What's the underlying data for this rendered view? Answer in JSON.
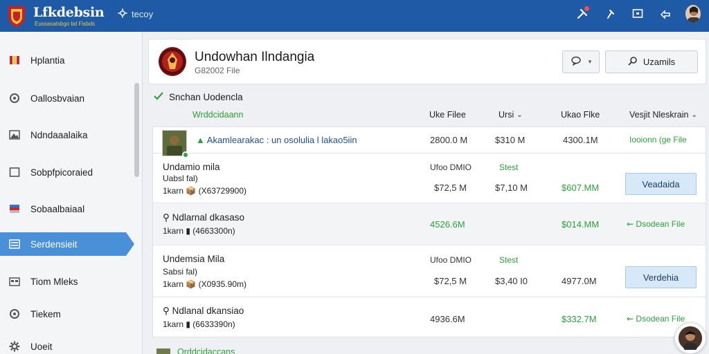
{
  "topbar": {
    "brand": "Lfkdebsin",
    "brand_sub": "Eussasatsbgo bd Fisbds",
    "search_label": "tecoy",
    "icons": [
      "tools-icon",
      "pin-icon",
      "screen-icon",
      "share-icon",
      "avatar"
    ]
  },
  "sidebar": {
    "items": [
      {
        "label": "Hplantia",
        "icon": "flag-icon",
        "active": false
      },
      {
        "label": "Oallosbvaian",
        "icon": "circle-icon",
        "active": false
      },
      {
        "label": "Ndndaaalaika",
        "icon": "mountain-icon",
        "active": false
      },
      {
        "label": "Sobpfpicoraied",
        "icon": "square-icon",
        "active": false
      },
      {
        "label": "Sobaalbaiaal",
        "icon": "flag-stripe-icon",
        "active": false
      },
      {
        "label": "Serdensieit",
        "icon": "list-icon",
        "active": true
      },
      {
        "label": "Tiom Mleks",
        "icon": "calendar-icon",
        "active": false
      },
      {
        "label": "Tiekem",
        "icon": "circle-icon",
        "active": false
      },
      {
        "label": "Uoeit",
        "icon": "gear-icon",
        "active": false
      }
    ]
  },
  "header": {
    "title": "Undowhan Ilndangia",
    "subtitle": "G82002 File",
    "search_button": "Uzamils"
  },
  "section": {
    "title": "Snchan Uodencla",
    "columns": {
      "name": "Wrddcidaann",
      "c1": "Uke Filee",
      "c2": "Ursi",
      "c3": "Ukao Flke",
      "c4": "Vesjit Nleskrain"
    }
  },
  "rows": [
    {
      "title": "Akamlearakac : un osolulia l lakao5iin",
      "v1": "2800.0 M",
      "v2": "$310 M",
      "v3": "4300.1M",
      "action": "Iooionn (ge File"
    },
    {
      "title": "Undamio mila",
      "sub": "Uabsl fal)",
      "meta": "1karn 📦 (X63729900)",
      "top1": "Ufoo DMIO",
      "top2": "Stest",
      "v1": "$72,5 M",
      "v2": "$7,10 M",
      "v3": "$607.MM",
      "button": "Veadaida"
    },
    {
      "title": "Ndlarnal dkasaso",
      "meta": "1karn ▮ (4663300n)",
      "v1": "4526.6M",
      "v3": "$014.MM",
      "action": "Dsodean File"
    },
    {
      "title": "Undemsia Mila",
      "sub": "Sabsi fal)",
      "meta": "1karn 📦 (X0935.90m)",
      "top1": "Ufoo DMIO",
      "top2": "Stest",
      "v1": "$72,5 M",
      "v2": "$3,40 I0",
      "v3": "4977.0M",
      "button": "Verdehia"
    },
    {
      "title": "Ndlanal dkansiao",
      "meta": "1karn ▮ (6633390n)",
      "v1": "4936.6M",
      "v3": "$332.7M",
      "action": "Dsodean File"
    }
  ],
  "bottom": {
    "label": "Qrddcidaccans"
  }
}
